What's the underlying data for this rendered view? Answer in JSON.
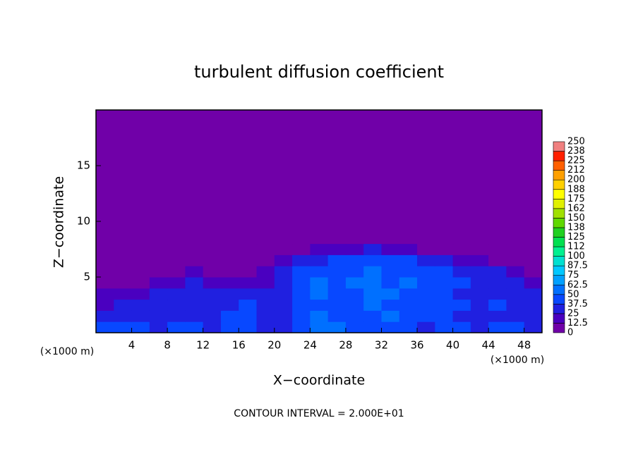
{
  "chart_data": {
    "type": "heatmap",
    "title": "turbulent diffusion coefficient",
    "xlabel": "X−coordinate",
    "ylabel": "Z−coordinate",
    "x_unit_label": "(×1000 m)",
    "y_unit_label": "(×1000 m)",
    "footer": "CONTOUR INTERVAL = 2.000E+01",
    "xlim": [
      0,
      50
    ],
    "ylim": [
      0,
      20
    ],
    "xticks": [
      4,
      8,
      12,
      16,
      20,
      24,
      28,
      32,
      36,
      40,
      44,
      48
    ],
    "yticks": [
      5,
      10,
      15
    ],
    "x_edges": [
      0,
      2,
      4,
      6,
      8,
      10,
      12,
      14,
      16,
      18,
      20,
      22,
      24,
      26,
      28,
      30,
      32,
      34,
      36,
      38,
      40,
      42,
      44,
      46,
      48,
      50
    ],
    "y_edges": [
      0,
      1,
      2,
      3,
      4,
      5,
      6,
      7,
      8,
      20
    ],
    "z": [
      [
        40,
        42,
        38,
        35,
        40,
        38,
        35,
        40,
        45,
        30,
        35,
        40,
        60,
        55,
        45,
        40,
        45,
        40,
        35,
        40,
        38,
        35,
        40,
        38,
        35
      ],
      [
        30,
        32,
        28,
        30,
        35,
        32,
        30,
        38,
        40,
        30,
        35,
        42,
        50,
        45,
        48,
        45,
        50,
        42,
        38,
        40,
        35,
        32,
        35,
        30,
        30
      ],
      [
        20,
        25,
        30,
        28,
        32,
        30,
        28,
        35,
        38,
        30,
        35,
        45,
        48,
        40,
        45,
        50,
        48,
        45,
        40,
        42,
        38,
        35,
        38,
        30,
        28
      ],
      [
        15,
        18,
        20,
        25,
        28,
        30,
        32,
        30,
        28,
        25,
        30,
        45,
        50,
        42,
        48,
        55,
        50,
        48,
        42,
        38,
        35,
        32,
        35,
        30,
        25
      ],
      [
        8,
        10,
        12,
        15,
        20,
        25,
        22,
        18,
        15,
        20,
        30,
        42,
        50,
        45,
        52,
        55,
        48,
        50,
        45,
        40,
        38,
        35,
        30,
        28,
        15
      ],
      [
        5,
        6,
        8,
        10,
        12,
        15,
        12,
        10,
        8,
        15,
        25,
        40,
        45,
        42,
        48,
        50,
        45,
        45,
        42,
        40,
        35,
        32,
        28,
        20,
        8
      ],
      [
        2,
        3,
        4,
        5,
        5,
        6,
        5,
        4,
        3,
        5,
        15,
        30,
        35,
        38,
        40,
        42,
        40,
        38,
        35,
        25,
        20,
        15,
        8,
        4,
        2
      ],
      [
        0,
        0,
        0,
        0,
        0,
        0,
        0,
        0,
        0,
        0,
        3,
        10,
        18,
        20,
        22,
        25,
        20,
        15,
        8,
        3,
        0,
        0,
        0,
        0,
        0
      ],
      [
        0,
        0,
        0,
        0,
        0,
        0,
        0,
        0,
        0,
        0,
        0,
        0,
        0,
        0,
        0,
        0,
        0,
        0,
        0,
        0,
        0,
        0,
        0,
        0,
        0
      ]
    ],
    "colorbar": {
      "levels": [
        0,
        12.5,
        25,
        37.5,
        50,
        62.5,
        75,
        87.5,
        100,
        112,
        125,
        138,
        150,
        162,
        175,
        188,
        200,
        212,
        225,
        238,
        250
      ],
      "colors": [
        "#7000a8",
        "#4a00c0",
        "#2020e0",
        "#0848ff",
        "#0070ff",
        "#00a0ff",
        "#00c8ff",
        "#00e0d0",
        "#00f090",
        "#00e050",
        "#20d020",
        "#60d800",
        "#a0e000",
        "#e0f000",
        "#ffff00",
        "#ffd000",
        "#ffa000",
        "#ff6000",
        "#ff2000",
        "#f08080"
      ]
    }
  }
}
